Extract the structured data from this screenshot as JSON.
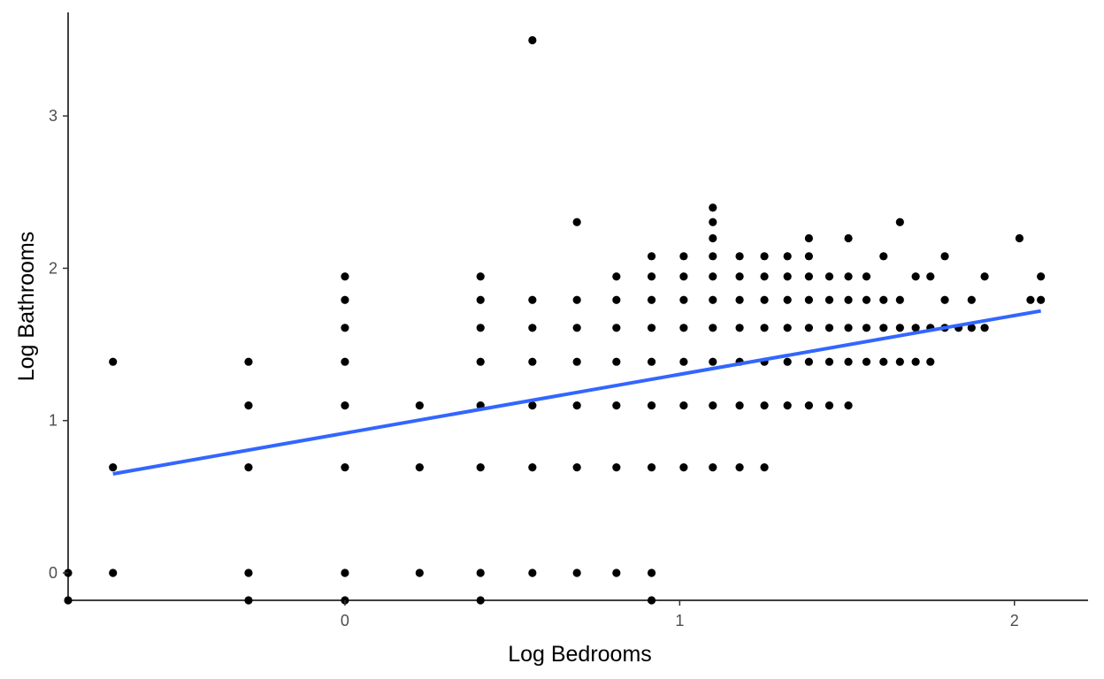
{
  "chart_data": {
    "type": "scatter",
    "title": "",
    "xlabel": "Log Bedrooms",
    "ylabel": "Log Bathrooms",
    "xlim": [
      -0.827,
      2.22
    ],
    "ylim": [
      -0.18,
      3.68
    ],
    "x_ticks": [
      {
        "value": 0,
        "label": "0"
      },
      {
        "value": 1,
        "label": "1"
      },
      {
        "value": 2,
        "label": "2"
      }
    ],
    "y_ticks": [
      {
        "value": 0,
        "label": "0"
      },
      {
        "value": 1,
        "label": "1"
      },
      {
        "value": 2,
        "label": "2"
      },
      {
        "value": 3,
        "label": "3"
      }
    ],
    "grid": false,
    "point_color": "#000000",
    "trend_color": "#3366ff",
    "trend_line": {
      "x_start": -0.693,
      "y_start": 0.65,
      "x_end": 2.079,
      "y_end": 1.72
    },
    "points": [
      {
        "x": -0.827,
        "y": 0
      },
      {
        "x": -0.827,
        "y": -0.18
      },
      {
        "x": -0.693,
        "y": 1.386
      },
      {
        "x": -0.693,
        "y": 0.693
      },
      {
        "x": -0.693,
        "y": 0
      },
      {
        "x": -0.288,
        "y": 1.386
      },
      {
        "x": -0.288,
        "y": 1.099
      },
      {
        "x": -0.288,
        "y": 0.693
      },
      {
        "x": -0.288,
        "y": 0
      },
      {
        "x": -0.288,
        "y": -0.18
      },
      {
        "x": 0,
        "y": 1.946
      },
      {
        "x": 0,
        "y": 1.792
      },
      {
        "x": 0,
        "y": 1.609
      },
      {
        "x": 0,
        "y": 1.386
      },
      {
        "x": 0,
        "y": 1.099
      },
      {
        "x": 0,
        "y": 0.693
      },
      {
        "x": 0,
        "y": 0
      },
      {
        "x": 0,
        "y": -0.18
      },
      {
        "x": 0.223,
        "y": 1.099
      },
      {
        "x": 0.223,
        "y": 0.693
      },
      {
        "x": 0.223,
        "y": 0
      },
      {
        "x": 0.405,
        "y": 1.946
      },
      {
        "x": 0.405,
        "y": 1.792
      },
      {
        "x": 0.405,
        "y": 1.609
      },
      {
        "x": 0.405,
        "y": 1.386
      },
      {
        "x": 0.405,
        "y": 1.099
      },
      {
        "x": 0.405,
        "y": 0.693
      },
      {
        "x": 0.405,
        "y": 0
      },
      {
        "x": 0.405,
        "y": -0.18
      },
      {
        "x": 0.56,
        "y": 3.497
      },
      {
        "x": 0.56,
        "y": 1.792
      },
      {
        "x": 0.56,
        "y": 1.609
      },
      {
        "x": 0.56,
        "y": 1.386
      },
      {
        "x": 0.56,
        "y": 1.099
      },
      {
        "x": 0.56,
        "y": 0.693
      },
      {
        "x": 0.56,
        "y": 0
      },
      {
        "x": 0.693,
        "y": 2.303
      },
      {
        "x": 0.693,
        "y": 1.792
      },
      {
        "x": 0.693,
        "y": 1.609
      },
      {
        "x": 0.693,
        "y": 1.386
      },
      {
        "x": 0.693,
        "y": 1.099
      },
      {
        "x": 0.693,
        "y": 0.693
      },
      {
        "x": 0.693,
        "y": 0
      },
      {
        "x": 0.811,
        "y": 1.946
      },
      {
        "x": 0.811,
        "y": 1.792
      },
      {
        "x": 0.811,
        "y": 1.609
      },
      {
        "x": 0.811,
        "y": 1.386
      },
      {
        "x": 0.811,
        "y": 1.099
      },
      {
        "x": 0.811,
        "y": 0.693
      },
      {
        "x": 0.811,
        "y": 0
      },
      {
        "x": 0.916,
        "y": 2.079
      },
      {
        "x": 0.916,
        "y": 1.946
      },
      {
        "x": 0.916,
        "y": 1.792
      },
      {
        "x": 0.916,
        "y": 1.609
      },
      {
        "x": 0.916,
        "y": 1.386
      },
      {
        "x": 0.916,
        "y": 1.099
      },
      {
        "x": 0.916,
        "y": 0.693
      },
      {
        "x": 0.916,
        "y": 0
      },
      {
        "x": 0.916,
        "y": -0.18
      },
      {
        "x": 1.012,
        "y": 2.079
      },
      {
        "x": 1.012,
        "y": 1.946
      },
      {
        "x": 1.012,
        "y": 1.792
      },
      {
        "x": 1.012,
        "y": 1.609
      },
      {
        "x": 1.012,
        "y": 1.386
      },
      {
        "x": 1.012,
        "y": 1.099
      },
      {
        "x": 1.012,
        "y": 0.693
      },
      {
        "x": 1.099,
        "y": 2.398
      },
      {
        "x": 1.099,
        "y": 2.303
      },
      {
        "x": 1.099,
        "y": 2.197
      },
      {
        "x": 1.099,
        "y": 2.079
      },
      {
        "x": 1.099,
        "y": 1.946
      },
      {
        "x": 1.099,
        "y": 1.792
      },
      {
        "x": 1.099,
        "y": 1.609
      },
      {
        "x": 1.099,
        "y": 1.386
      },
      {
        "x": 1.099,
        "y": 1.099
      },
      {
        "x": 1.099,
        "y": 0.693
      },
      {
        "x": 1.179,
        "y": 2.079
      },
      {
        "x": 1.179,
        "y": 1.946
      },
      {
        "x": 1.179,
        "y": 1.792
      },
      {
        "x": 1.179,
        "y": 1.609
      },
      {
        "x": 1.179,
        "y": 1.386
      },
      {
        "x": 1.179,
        "y": 1.099
      },
      {
        "x": 1.179,
        "y": 0.693
      },
      {
        "x": 1.253,
        "y": 2.079
      },
      {
        "x": 1.253,
        "y": 1.946
      },
      {
        "x": 1.253,
        "y": 1.792
      },
      {
        "x": 1.253,
        "y": 1.609
      },
      {
        "x": 1.253,
        "y": 1.386
      },
      {
        "x": 1.253,
        "y": 1.099
      },
      {
        "x": 1.253,
        "y": 0.693
      },
      {
        "x": 1.322,
        "y": 2.079
      },
      {
        "x": 1.322,
        "y": 1.946
      },
      {
        "x": 1.322,
        "y": 1.792
      },
      {
        "x": 1.322,
        "y": 1.609
      },
      {
        "x": 1.322,
        "y": 1.386
      },
      {
        "x": 1.322,
        "y": 1.099
      },
      {
        "x": 1.386,
        "y": 2.197
      },
      {
        "x": 1.386,
        "y": 2.079
      },
      {
        "x": 1.386,
        "y": 1.946
      },
      {
        "x": 1.386,
        "y": 1.792
      },
      {
        "x": 1.386,
        "y": 1.609
      },
      {
        "x": 1.386,
        "y": 1.386
      },
      {
        "x": 1.386,
        "y": 1.099
      },
      {
        "x": 1.447,
        "y": 1.946
      },
      {
        "x": 1.447,
        "y": 1.792
      },
      {
        "x": 1.447,
        "y": 1.609
      },
      {
        "x": 1.447,
        "y": 1.386
      },
      {
        "x": 1.447,
        "y": 1.099
      },
      {
        "x": 1.504,
        "y": 2.197
      },
      {
        "x": 1.504,
        "y": 1.946
      },
      {
        "x": 1.504,
        "y": 1.792
      },
      {
        "x": 1.504,
        "y": 1.609
      },
      {
        "x": 1.504,
        "y": 1.386
      },
      {
        "x": 1.504,
        "y": 1.099
      },
      {
        "x": 1.558,
        "y": 1.946
      },
      {
        "x": 1.558,
        "y": 1.792
      },
      {
        "x": 1.558,
        "y": 1.609
      },
      {
        "x": 1.558,
        "y": 1.386
      },
      {
        "x": 1.609,
        "y": 2.079
      },
      {
        "x": 1.609,
        "y": 1.792
      },
      {
        "x": 1.609,
        "y": 1.609
      },
      {
        "x": 1.609,
        "y": 1.386
      },
      {
        "x": 1.658,
        "y": 2.303
      },
      {
        "x": 1.658,
        "y": 1.792
      },
      {
        "x": 1.658,
        "y": 1.609
      },
      {
        "x": 1.658,
        "y": 1.386
      },
      {
        "x": 1.705,
        "y": 1.946
      },
      {
        "x": 1.705,
        "y": 1.609
      },
      {
        "x": 1.705,
        "y": 1.386
      },
      {
        "x": 1.749,
        "y": 1.946
      },
      {
        "x": 1.749,
        "y": 1.609
      },
      {
        "x": 1.749,
        "y": 1.386
      },
      {
        "x": 1.792,
        "y": 2.079
      },
      {
        "x": 1.792,
        "y": 1.792
      },
      {
        "x": 1.792,
        "y": 1.609
      },
      {
        "x": 1.833,
        "y": 1.609
      },
      {
        "x": 1.872,
        "y": 1.792
      },
      {
        "x": 1.872,
        "y": 1.609
      },
      {
        "x": 1.911,
        "y": 1.946
      },
      {
        "x": 1.911,
        "y": 1.609
      },
      {
        "x": 2.015,
        "y": 2.197
      },
      {
        "x": 2.048,
        "y": 1.792
      },
      {
        "x": 2.079,
        "y": 1.946
      },
      {
        "x": 2.079,
        "y": 1.792
      }
    ]
  }
}
